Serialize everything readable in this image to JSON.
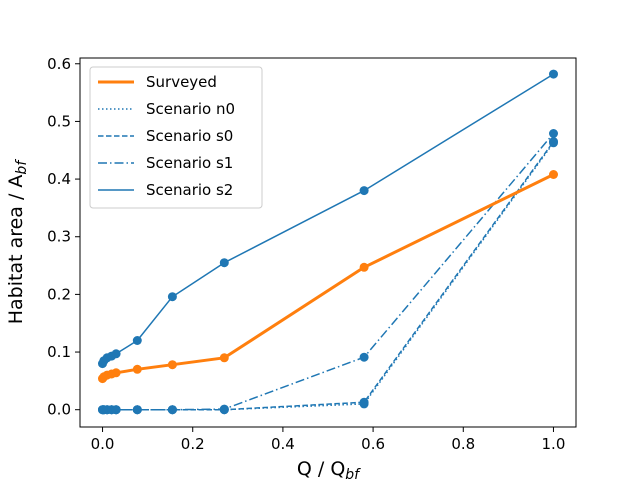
{
  "chart_data": {
    "type": "line",
    "xlabel": "Q / Q",
    "xlabel_sub": "bf",
    "ylabel": "Habitat area / A",
    "ylabel_sub": "bf",
    "xlim": [
      -0.05,
      1.05
    ],
    "ylim": [
      -0.03,
      0.61
    ],
    "xticks": [
      0.0,
      0.2,
      0.4,
      0.6,
      0.8,
      1.0
    ],
    "xtick_labels": [
      "0.0",
      "0.2",
      "0.4",
      "0.6",
      "0.8",
      "1.0"
    ],
    "yticks": [
      0.0,
      0.1,
      0.2,
      0.3,
      0.4,
      0.5,
      0.6
    ],
    "ytick_labels": [
      "0.0",
      "0.1",
      "0.2",
      "0.3",
      "0.4",
      "0.5",
      "0.6"
    ],
    "grid": false,
    "legend_position": "top-left",
    "series": [
      {
        "name": "Surveyed",
        "color": "#ff7f0e",
        "style": "solid",
        "linewidth": 3,
        "x": [
          0.0,
          0.003,
          0.01,
          0.02,
          0.03,
          0.077,
          0.155,
          0.27,
          0.58,
          1.0
        ],
        "y": [
          0.054,
          0.057,
          0.06,
          0.062,
          0.064,
          0.07,
          0.078,
          0.09,
          0.247,
          0.408
        ]
      },
      {
        "name": "Scenario n0",
        "color": "#1f77b4",
        "style": "dotted",
        "linewidth": 1.5,
        "x": [
          0.0,
          0.003,
          0.01,
          0.02,
          0.03,
          0.077,
          0.155,
          0.27,
          0.58,
          1.0
        ],
        "y": [
          0.0,
          0.0,
          0.0,
          0.0,
          0.0,
          0.0,
          0.0,
          0.0,
          0.01,
          0.463
        ]
      },
      {
        "name": "Scenario s0",
        "color": "#1f77b4",
        "style": "dashed",
        "linewidth": 1.5,
        "x": [
          0.0,
          0.003,
          0.01,
          0.02,
          0.03,
          0.077,
          0.155,
          0.27,
          0.58,
          1.0
        ],
        "y": [
          0.0,
          0.0,
          0.0,
          0.0,
          0.0,
          0.0,
          0.0,
          0.0,
          0.013,
          0.465
        ]
      },
      {
        "name": "Scenario s1",
        "color": "#1f77b4",
        "style": "dashdot",
        "linewidth": 1.5,
        "x": [
          0.0,
          0.003,
          0.01,
          0.02,
          0.03,
          0.077,
          0.155,
          0.27,
          0.58,
          1.0
        ],
        "y": [
          0.0,
          0.0,
          0.0,
          0.0,
          0.0,
          0.0,
          0.0,
          0.001,
          0.091,
          0.479
        ]
      },
      {
        "name": "Scenario s2",
        "color": "#1f77b4",
        "style": "solid",
        "linewidth": 1.5,
        "x": [
          0.0,
          0.003,
          0.01,
          0.02,
          0.03,
          0.077,
          0.155,
          0.27,
          0.58,
          1.0
        ],
        "y": [
          0.08,
          0.085,
          0.09,
          0.093,
          0.097,
          0.12,
          0.196,
          0.255,
          0.38,
          0.582
        ]
      }
    ]
  }
}
